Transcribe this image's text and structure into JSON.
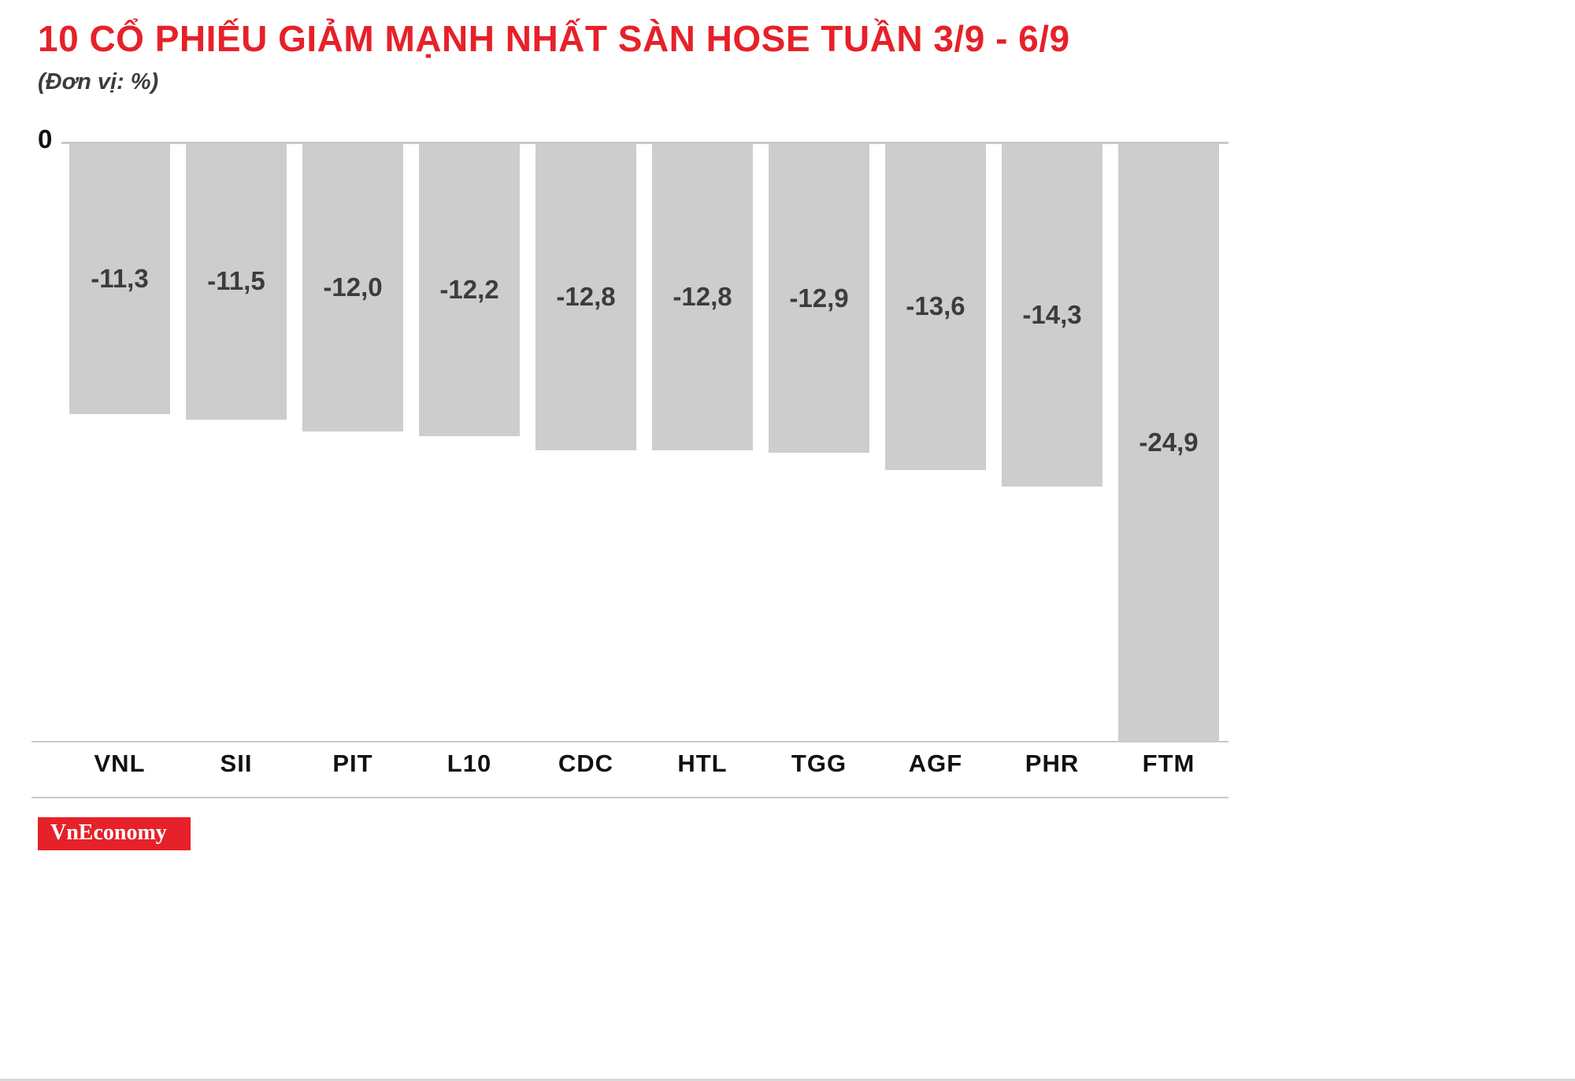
{
  "title": "10 CỔ PHIẾU GIẢM MẠNH NHẤT SÀN HOSE TUẦN 3/9 - 6/9",
  "subtitle": "(Đơn vị: %)",
  "zero_label": "0",
  "branding": "VnEconomy",
  "colors": {
    "background": "#ffffff",
    "title": "#e62129",
    "subtitle": "#3c3c3c",
    "bar": "#cdcdcd",
    "value_label": "#3c3c3c",
    "category_label": "#111111",
    "axis_line": "#c9c9c9",
    "brand_bg": "#e62129",
    "brand_text": "#ffffff"
  },
  "chart_data": {
    "type": "bar",
    "orientation": "vertical-negative",
    "title": "10 CỔ PHIẾU GIẢM MẠNH NHẤT SÀN HOSE TUẦN 3/9 - 6/9",
    "unit": "%",
    "categories": [
      "VNL",
      "SII",
      "PIT",
      "L10",
      "CDC",
      "HTL",
      "TGG",
      "AGF",
      "PHR",
      "FTM"
    ],
    "values": [
      -11.3,
      -11.5,
      -12.0,
      -12.2,
      -12.8,
      -12.8,
      -12.9,
      -13.6,
      -14.3,
      -24.9
    ],
    "value_labels": [
      "-11,3",
      "-11,5",
      "-12,0",
      "-12,2",
      "-12,8",
      "-12,8",
      "-12,9",
      "-13,6",
      "-14,3",
      "-24,9"
    ],
    "ylim": [
      -24.9,
      0
    ],
    "grid": false,
    "legend": false,
    "value_labels_position": "inside-center",
    "category_labels_position": "bottom"
  }
}
